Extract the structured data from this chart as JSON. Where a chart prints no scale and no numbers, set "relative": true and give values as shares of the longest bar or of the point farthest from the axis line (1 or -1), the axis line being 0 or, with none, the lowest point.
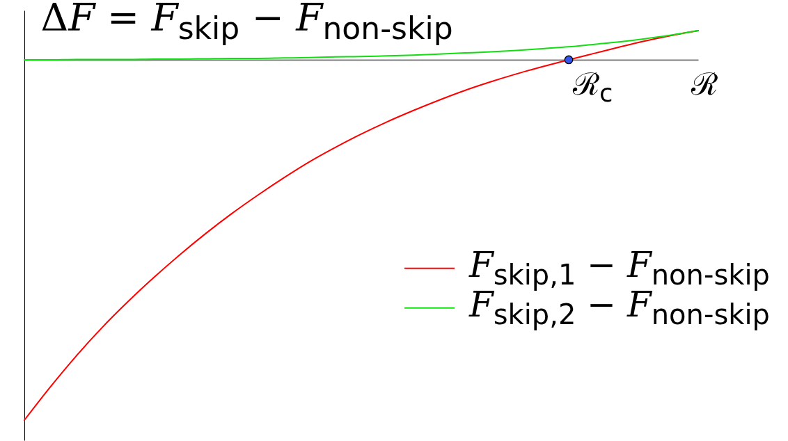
{
  "chart_data": {
    "type": "line",
    "relative": true,
    "ylabel": "ΔF = F$_{skip}$ − F$_{non-skip}$",
    "xlabel": "ℛ",
    "categories": [
      null,
      null,
      null,
      null,
      null,
      null,
      null,
      null,
      null,
      null,
      null,
      null,
      null,
      null,
      null,
      null,
      null,
      null,
      null,
      null,
      null,
      null,
      null,
      null,
      null,
      null,
      null
    ],
    "series": [
      {
        "name": "F$_{skip,1}$ − F$_{non-skip}$",
        "color": "#ff0000",
        "values": [
          -1,
          -0.908,
          -0.822,
          -0.743,
          -0.671,
          -0.604,
          -0.541,
          -0.482,
          -0.427,
          -0.376,
          -0.328,
          -0.283,
          -0.243,
          -0.206,
          -0.172,
          -0.141,
          -0.112,
          -0.085,
          -0.061,
          -0.039,
          -0.019,
          0,
          0.018,
          0.036,
          0.053,
          0.068,
          0.081
        ]
      },
      {
        "name": "F$_{skip,2}$ − F$_{non-skip}$",
        "color": "#11dd11",
        "values": [
          0,
          0,
          0.001,
          0.001,
          0.001,
          0.002,
          0.002,
          0.003,
          0.004,
          0.004,
          0.005,
          0.006,
          0.008,
          0.009,
          0.011,
          0.013,
          0.016,
          0.019,
          0.022,
          0.026,
          0.031,
          0.036,
          0.043,
          0.05,
          0.059,
          0.069,
          0.081
        ]
      }
    ],
    "annotations": [
      "ℛ$_{c}$"
    ],
    "legend": "right"
  }
}
